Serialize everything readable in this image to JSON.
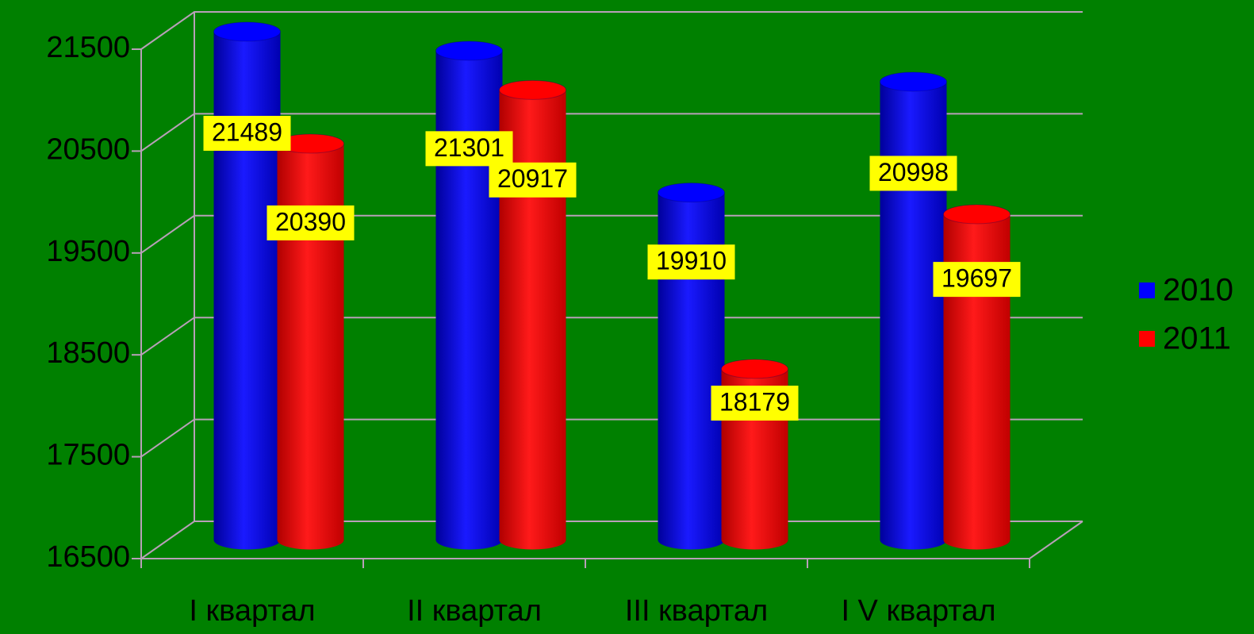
{
  "chart_data": {
    "type": "bar3d",
    "categories": [
      "I квартал",
      "II квартал",
      "III квартал",
      "I V квартал"
    ],
    "series": [
      {
        "name": "2010",
        "color": "#0000ff",
        "values": [
          21489,
          21301,
          19910,
          20998
        ]
      },
      {
        "name": "2011",
        "color": "#ff0000",
        "values": [
          20390,
          20917,
          18179,
          19697
        ]
      }
    ],
    "ylim": [
      16500,
      21500
    ],
    "yticks": [
      16500,
      17500,
      18500,
      19500,
      20500,
      21500
    ],
    "grid": true,
    "legend": "right",
    "background": "#008000",
    "label_background": "#ffff00"
  }
}
